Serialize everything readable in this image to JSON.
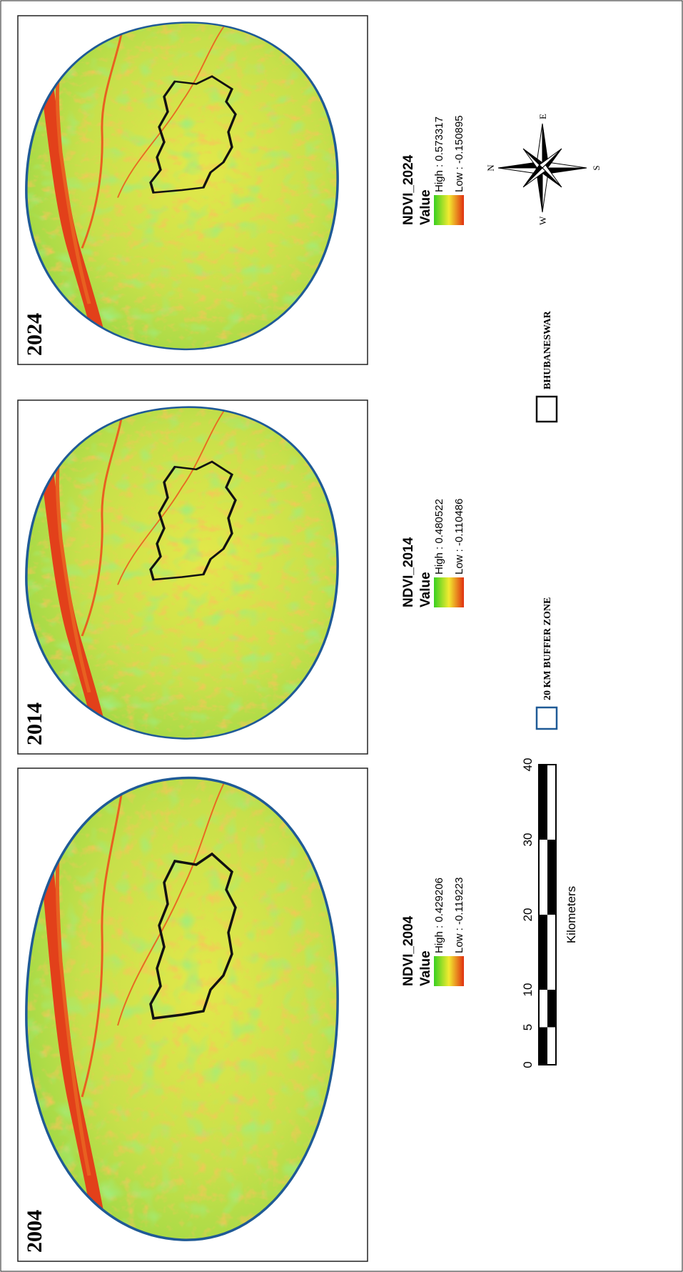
{
  "panels": [
    {
      "year": "2004",
      "legend_title": "NDVI_2004",
      "legend_subtitle": "Value",
      "high": "High : 0.429206",
      "low": "Low : -0.119223"
    },
    {
      "year": "2014",
      "legend_title": "NDVI_2014",
      "legend_subtitle": "Value",
      "high": "High : 0.480522",
      "low": "Low : -0.110486"
    },
    {
      "year": "2024",
      "legend_title": "NDVI_2024",
      "legend_subtitle": "Value",
      "high": "High : 0.573317",
      "low": "Low : -0.150895"
    }
  ],
  "scale_bar": {
    "ticks": [
      "0",
      "5",
      "10",
      "20",
      "30",
      "40"
    ],
    "unit": "Kilometers"
  },
  "legend": {
    "buffer": "20 KM BUFFER ZONE",
    "city": "BHUBANESWAR"
  },
  "compass": {
    "n": "N",
    "e": "E",
    "s": "S",
    "w": "W"
  }
}
